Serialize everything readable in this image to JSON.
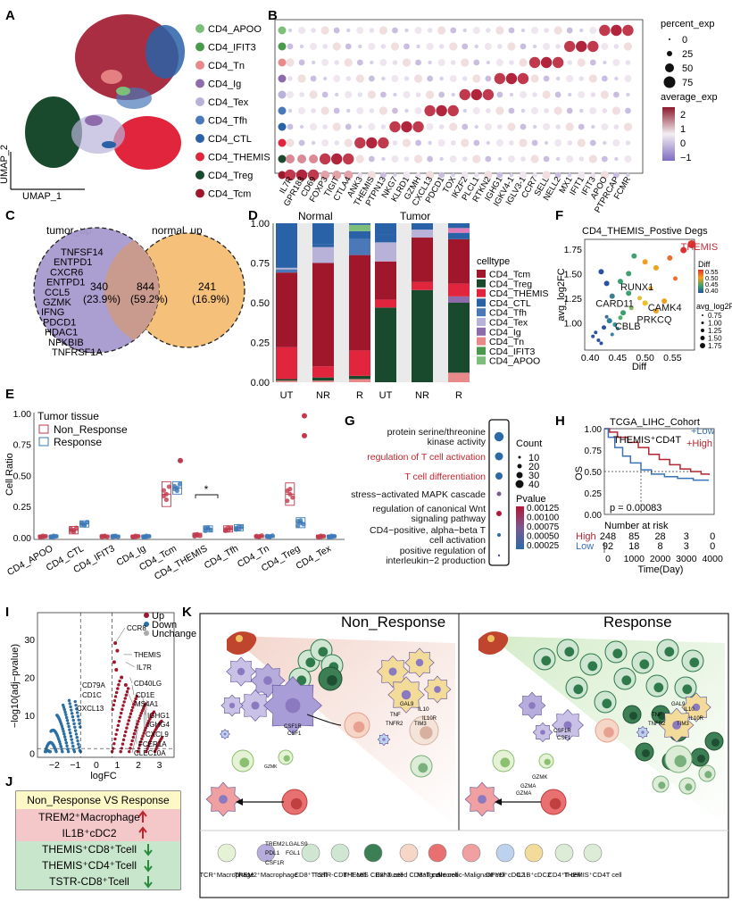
{
  "panel_letters": [
    "A",
    "B",
    "C",
    "D",
    "E",
    "F",
    "G",
    "H",
    "I",
    "J",
    "K"
  ],
  "colors": {
    "CD4_APOO": "#7dbf7a",
    "CD4_IFIT3": "#4a9a4e",
    "CD4_Tn": "#e88a8a",
    "CD4_Ig": "#8e6cab",
    "CD4_Tex": "#b9b2d8",
    "CD4_Tfh": "#4a78b8",
    "CD4_CTL": "#2a62a8",
    "CD4_THEMIS": "#e0253c",
    "CD4_Treg": "#1a4a2e",
    "CD4_Tcm": "#a0172c",
    "up": "#a0172c",
    "down": "#2a6fa5"
  },
  "panelA": {
    "xlabel": "UMAP_1",
    "ylabel": "UMAP_2",
    "legend": [
      "CD4_APOO",
      "CD4_IFIT3",
      "CD4_Tn",
      "CD4_Ig",
      "CD4_Tex",
      "CD4_Tfh",
      "CD4_CTL",
      "CD4_THEMIS",
      "CD4_Treg",
      "CD4_Tcm"
    ]
  },
  "panelB": {
    "genes": [
      "IL7R",
      "GPR183",
      "CD69",
      "FOXP3",
      "TIGIT",
      "CTLA4",
      "ANK3",
      "THEMIS",
      "PTPN13",
      "NKG7",
      "KLRD1",
      "GZMH",
      "CXCL13",
      "PDCD1",
      "TOX",
      "IKZF2",
      "PLCL1",
      "RTKN2",
      "IGHG1",
      "IGKV4-1",
      "IGLV3-1",
      "CCR7",
      "SELL",
      "NELL2",
      "MX1",
      "IFIT1",
      "IFIT3",
      "APOO",
      "PTPRCAP",
      "FCMR"
    ],
    "legend_size_title": "percent_exp",
    "size_ticks": [
      "0",
      "25",
      "50",
      "75"
    ],
    "legend_color_title": "average_exp",
    "color_ticks": [
      "2",
      "1",
      "0",
      "−1"
    ]
  },
  "panelC": {
    "left_title": "tumor_up",
    "right_title": "normal_up",
    "genes": [
      "TNFSF14",
      "ENTPD1",
      "CXCR6",
      "ENTPD1",
      "CCL5",
      "GZMK",
      "IFNG",
      "PDCD1",
      "HDAC1",
      "NFKBIB",
      "TNFRSF1A"
    ],
    "left_count": "340",
    "left_pct": "(23.9%)",
    "mid_count": "844",
    "mid_pct": "(59.2%)",
    "right_count": "241",
    "right_pct": "(16.9%)"
  },
  "panelD": {
    "title_normal": "Normal",
    "title_tumor": "Tumor",
    "legend_title": "celltype",
    "legend": [
      "CD4_Tcm",
      "CD4_Treg",
      "CD4_THEMIS",
      "CD4_CTL",
      "CD4_Tfh",
      "CD4_Tex",
      "CD4_Ig",
      "CD4_Tn",
      "CD4_IFIT3",
      "CD4_APOO"
    ],
    "yticks": [
      "1.00",
      "0.75",
      "0.50",
      "0.25",
      "0.00"
    ],
    "groups": [
      "UT",
      "NR",
      "R"
    ]
  },
  "panelE": {
    "title": "Tumor tissue",
    "legend": [
      "Non_Response",
      "Response"
    ],
    "ylabel": "Cell Ratio",
    "yticks": [
      "1.00",
      "0.75",
      "0.50",
      "0.25",
      "0.00"
    ],
    "categories": [
      "CD4_APOO",
      "CD4_CTL",
      "CD4_IFIT3",
      "CD4_Ig",
      "CD4_Tcm",
      "CD4_THEMIS",
      "CD4_Tfh",
      "CD4_Tn",
      "CD4_Treg",
      "CD4_Tex"
    ],
    "sig": "*"
  },
  "panelF": {
    "title": "CD4_THEMIS_Postive Degs",
    "xlabel": "Diff",
    "ylabel": "avg_log2FC",
    "xticks": [
      "0.40",
      "0.45",
      "0.50",
      "0.55"
    ],
    "yticks": [
      "1.75",
      "1.50",
      "1.25",
      "1.00"
    ],
    "labels": [
      "THEMIS",
      "RUNX1",
      "CARD11",
      "CAMK4",
      "PRKCQ",
      "CBLB"
    ],
    "legend_diff_title": "Diff",
    "legend_diff": [
      "0.55",
      "0.50",
      "0.45",
      "0.40"
    ],
    "legend_fc_title": "avg_log2FC",
    "legend_fc": [
      "0.75",
      "1.00",
      "1.25",
      "1.50",
      "1.75"
    ]
  },
  "panelG": {
    "terms": [
      "protein serine/threonine",
      "kinase activity",
      "regulation of T cell activation",
      "T cell differentiation",
      "stress−activated MAPK cascade",
      "regulation of canonical Wnt",
      "signaling pathway",
      "CD4−positive, alpha−beta T",
      "cell activation",
      "positive regulation of",
      "interleukin−2 production"
    ],
    "count_title": "Count",
    "count_ticks": [
      "10",
      "20",
      "30",
      "40"
    ],
    "p_title": "Pvalue",
    "p_ticks": [
      "0.00125",
      "0.00100",
      "0.00075",
      "0.00050",
      "0.00025"
    ]
  },
  "panelH": {
    "title": "TCGA_LIHC_Cohort",
    "legend": [
      "Low",
      "High"
    ],
    "annotation": "THEMIS⁺CD4T",
    "pvalue": "p = 0.00083",
    "ylabel": "OS",
    "yticks": [
      "1.00",
      "0.75",
      "0.50",
      "0.25",
      "0.00"
    ],
    "risk_title": "Number at risk",
    "high_label": "High",
    "low_label": "Low",
    "high_risk": [
      "248",
      "85",
      "28",
      "3",
      "0"
    ],
    "low_risk": [
      "92",
      "18",
      "8",
      "3",
      "0"
    ],
    "xticks": [
      "0",
      "1000",
      "2000",
      "3000",
      "4000"
    ],
    "xlabel": "Time(Day)"
  },
  "panelI": {
    "ylabel": "−log10(adj−pvalue)",
    "xlabel": "logFC",
    "legend": [
      "Up",
      "Down",
      "Unchange"
    ],
    "yticks": [
      "30",
      "20",
      "10",
      "0"
    ],
    "xticks": [
      "−2",
      "−1",
      "0",
      "1",
      "2",
      "3"
    ],
    "genes_up": [
      "CCR8",
      "THEMIS",
      "IL7R",
      "CD40LG",
      "CD1E",
      "MS4A1",
      "IGHG1",
      "IGHG4",
      "CXCL9",
      "FCER1A",
      "CLEC10A"
    ],
    "genes_down": [
      "CD79A",
      "CD1C",
      "CXCL13"
    ]
  },
  "panelJ": {
    "header": "Non_Response  VS  Response",
    "rows": [
      "TREM2⁺Macrophage",
      "IL1B⁺cDC2",
      "THEMIS⁺CD8⁺Tcell",
      "THEMIS⁺CD4⁺Tcell",
      "TSTR-CD8⁺Tcell"
    ]
  },
  "panelK": {
    "left_title": "Non_Response",
    "right_title": "Response",
    "molecules": [
      "CSF1R",
      "CSF1",
      "TNF",
      "GAL9",
      "IL10",
      "IL10R",
      "TNFR2",
      "TIM3",
      "GZMK",
      "GZMA",
      "PDL1",
      "TREM2",
      "LGALS9",
      "FGL1",
      "GZMK"
    ],
    "legend": [
      "TCR⁺Macrophage",
      "TREM2⁺Macrophage",
      "CD8⁺T cell",
      "TSTR-CD8⁺T cell",
      "THEMIS CD8⁺T cell",
      "Exhausted CD8⁺T cell",
      "Malignant cell",
      "Necrotic-Malignant cell",
      "DPYD⁺cDC2",
      "IL1B⁺cDC2",
      "CD4⁺T cell",
      "THEMIS⁺CD4T cell"
    ]
  }
}
